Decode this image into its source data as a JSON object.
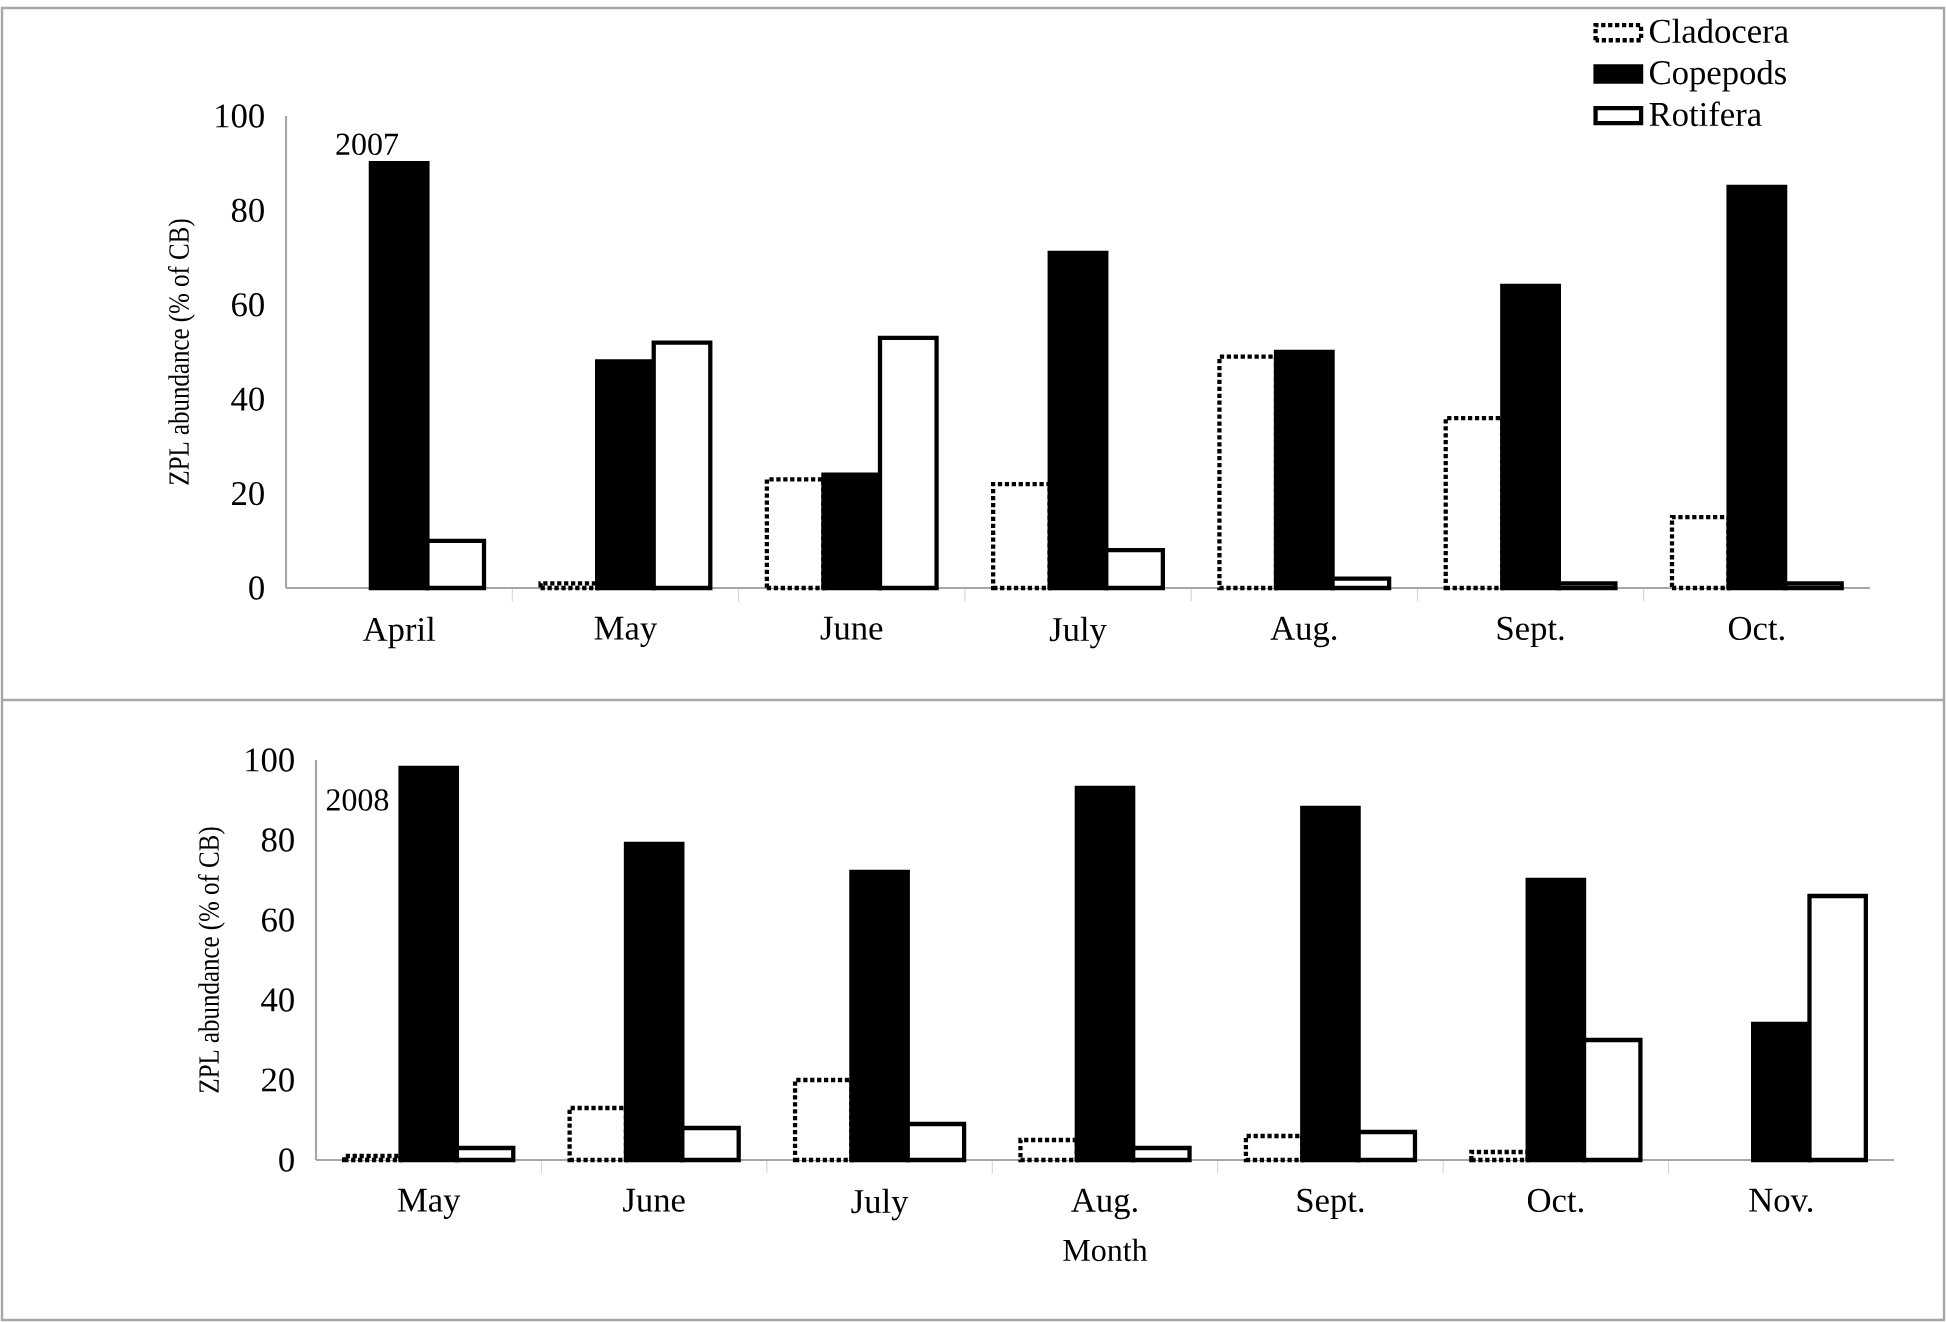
{
  "chart_data": [
    {
      "type": "bar",
      "categories": [
        "April",
        "May",
        "June",
        "July",
        "Aug.",
        "Sept.",
        "Oct."
      ],
      "ylabel": "ZPL abundance (% of CB)",
      "annotations": [
        "2007"
      ],
      "ylim": [
        0,
        100
      ],
      "yticks": [
        0,
        20,
        40,
        60,
        80,
        100
      ],
      "legend": "top right",
      "series": [
        {
          "name": "Cladocera",
          "color": "#ffffff",
          "line_style": "dotted",
          "values": [
            null,
            1,
            23,
            22,
            49,
            36,
            15
          ]
        },
        {
          "name": "Copepods",
          "color": "#000000",
          "values": [
            90,
            48,
            24,
            71,
            50,
            64,
            85
          ]
        },
        {
          "name": "Rotifera",
          "color": "#ffffff",
          "values": [
            10,
            52,
            53,
            8,
            2,
            1,
            1
          ]
        }
      ]
    },
    {
      "type": "bar",
      "categories": [
        "May",
        "June",
        "July",
        "Aug.",
        "Sept.",
        "Oct.",
        "Nov."
      ],
      "xlabel": "Month",
      "ylabel": "ZPL abundance (% of CB)",
      "annotations": [
        "2008"
      ],
      "ylim": [
        0,
        100
      ],
      "yticks": [
        0,
        20,
        40,
        60,
        80,
        100
      ],
      "series": [
        {
          "color": "#ffffff",
          "line_style": "dotted",
          "values": [
            1,
            13,
            20,
            5,
            6,
            2,
            null
          ]
        },
        {
          "color": "#000000",
          "values": [
            98,
            79,
            72,
            93,
            88,
            70,
            34
          ]
        },
        {
          "color": "#ffffff",
          "values": [
            3,
            8,
            9,
            3,
            7,
            30,
            66
          ]
        }
      ]
    }
  ]
}
